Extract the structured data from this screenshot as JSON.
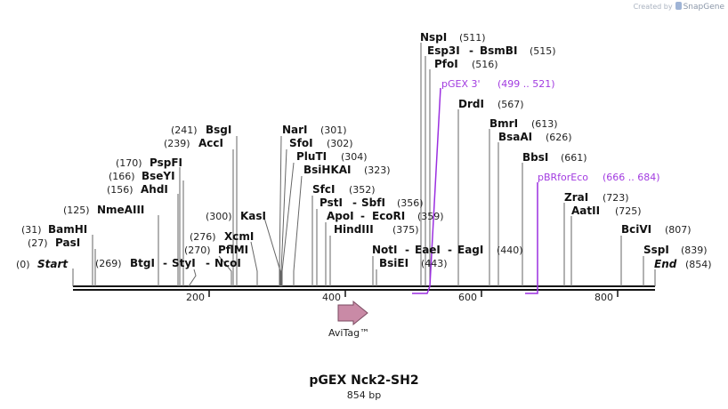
{
  "credit": {
    "created_by": "Created by",
    "brand": "SnapGene"
  },
  "map": {
    "title": "pGEX Nck2-SH2",
    "length_label": "854 bp",
    "total_bp": 854,
    "ticks": [
      {
        "value": 200,
        "label": "200"
      },
      {
        "value": 400,
        "label": "400"
      },
      {
        "value": 600,
        "label": "600"
      },
      {
        "value": 800,
        "label": "800"
      }
    ],
    "feature": {
      "name": "AviTag™",
      "start": 392,
      "end": 437
    },
    "primers": [
      {
        "name": "pGEX 3'",
        "range": "(499 .. 521)",
        "start": 499,
        "end": 521
      },
      {
        "name": "pBRforEco",
        "range": "(666 .. 684)",
        "start": 666,
        "end": 684
      }
    ],
    "start_end": {
      "start_pos": "(0)",
      "start_label": "Start",
      "end_label": "End",
      "end_pos": "(854)"
    },
    "sites": [
      {
        "id": "bamhi",
        "pos": "(31)",
        "name": "BamHI"
      },
      {
        "id": "pasi",
        "pos": "(27)",
        "name": "PasI"
      },
      {
        "id": "nmeaiii",
        "pos": "(125)",
        "name": "NmeAIII"
      },
      {
        "id": "pspfi",
        "pos": "(170)",
        "name": "PspFI"
      },
      {
        "id": "bseyi",
        "pos": "(166)",
        "name": "BseYI"
      },
      {
        "id": "ahdi",
        "pos": "(156)",
        "name": "AhdI"
      },
      {
        "id": "bsgi",
        "pos": "(241)",
        "name": "BsgI"
      },
      {
        "id": "acci",
        "pos": "(239)",
        "name": "AccI"
      },
      {
        "id": "kasi",
        "pos": "(300)",
        "name": "KasI"
      },
      {
        "id": "xcmi",
        "name": "XcmI",
        "pos": "(276)"
      },
      {
        "id": "pflmi",
        "pos": "(270)",
        "name": "PflMI"
      },
      {
        "id": "btgi_styi_ncoi",
        "pos": "(269)",
        "name": "BtgI",
        "name2": "StyI",
        "name3": "NcoI"
      },
      {
        "id": "nari",
        "name": "NarI",
        "pos": "(301)"
      },
      {
        "id": "sfoi",
        "name": "SfoI",
        "pos": "(302)"
      },
      {
        "id": "pluti",
        "name": "PluTI",
        "pos": "(304)"
      },
      {
        "id": "bsihkai",
        "name": "BsiHKAI",
        "pos": "(323)"
      },
      {
        "id": "sfci",
        "name": "SfcI",
        "pos": "(352)"
      },
      {
        "id": "psti_sbfi",
        "name": "PstI",
        "name2": "SbfI",
        "pos": "(356)"
      },
      {
        "id": "apoi_ecori",
        "name": "ApoI",
        "name2": "EcoRI",
        "pos": "(359)"
      },
      {
        "id": "hindiii",
        "name": "HindIII",
        "pos": "(375)"
      },
      {
        "id": "noti_eaei_eagi",
        "name": "NotI",
        "name2": "EaeI",
        "name3": "EagI",
        "pos": "(440)"
      },
      {
        "id": "bsiei",
        "name": "BsiEI",
        "pos": "(443)"
      },
      {
        "id": "nspi",
        "name": "NspI",
        "pos": "(511)"
      },
      {
        "id": "esp3i_bsmbi",
        "name": "Esp3I",
        "name2": "BsmBI",
        "pos": "(515)"
      },
      {
        "id": "pfoi",
        "name": "PfoI",
        "pos": "(516)"
      },
      {
        "id": "drdi",
        "name": "DrdI",
        "pos": "(567)"
      },
      {
        "id": "bmri",
        "name": "BmrI",
        "pos": "(613)"
      },
      {
        "id": "bsaai",
        "name": "BsaAI",
        "pos": "(626)"
      },
      {
        "id": "bbsi",
        "name": "BbsI",
        "pos": "(661)"
      },
      {
        "id": "zrai",
        "name": "ZraI",
        "pos": "(723)"
      },
      {
        "id": "aatii",
        "name": "AatII",
        "pos": "(725)"
      },
      {
        "id": "bcivi",
        "name": "BciVI",
        "pos": "(807)"
      },
      {
        "id": "sspi",
        "name": "SspI",
        "pos": "(839)"
      }
    ]
  }
}
